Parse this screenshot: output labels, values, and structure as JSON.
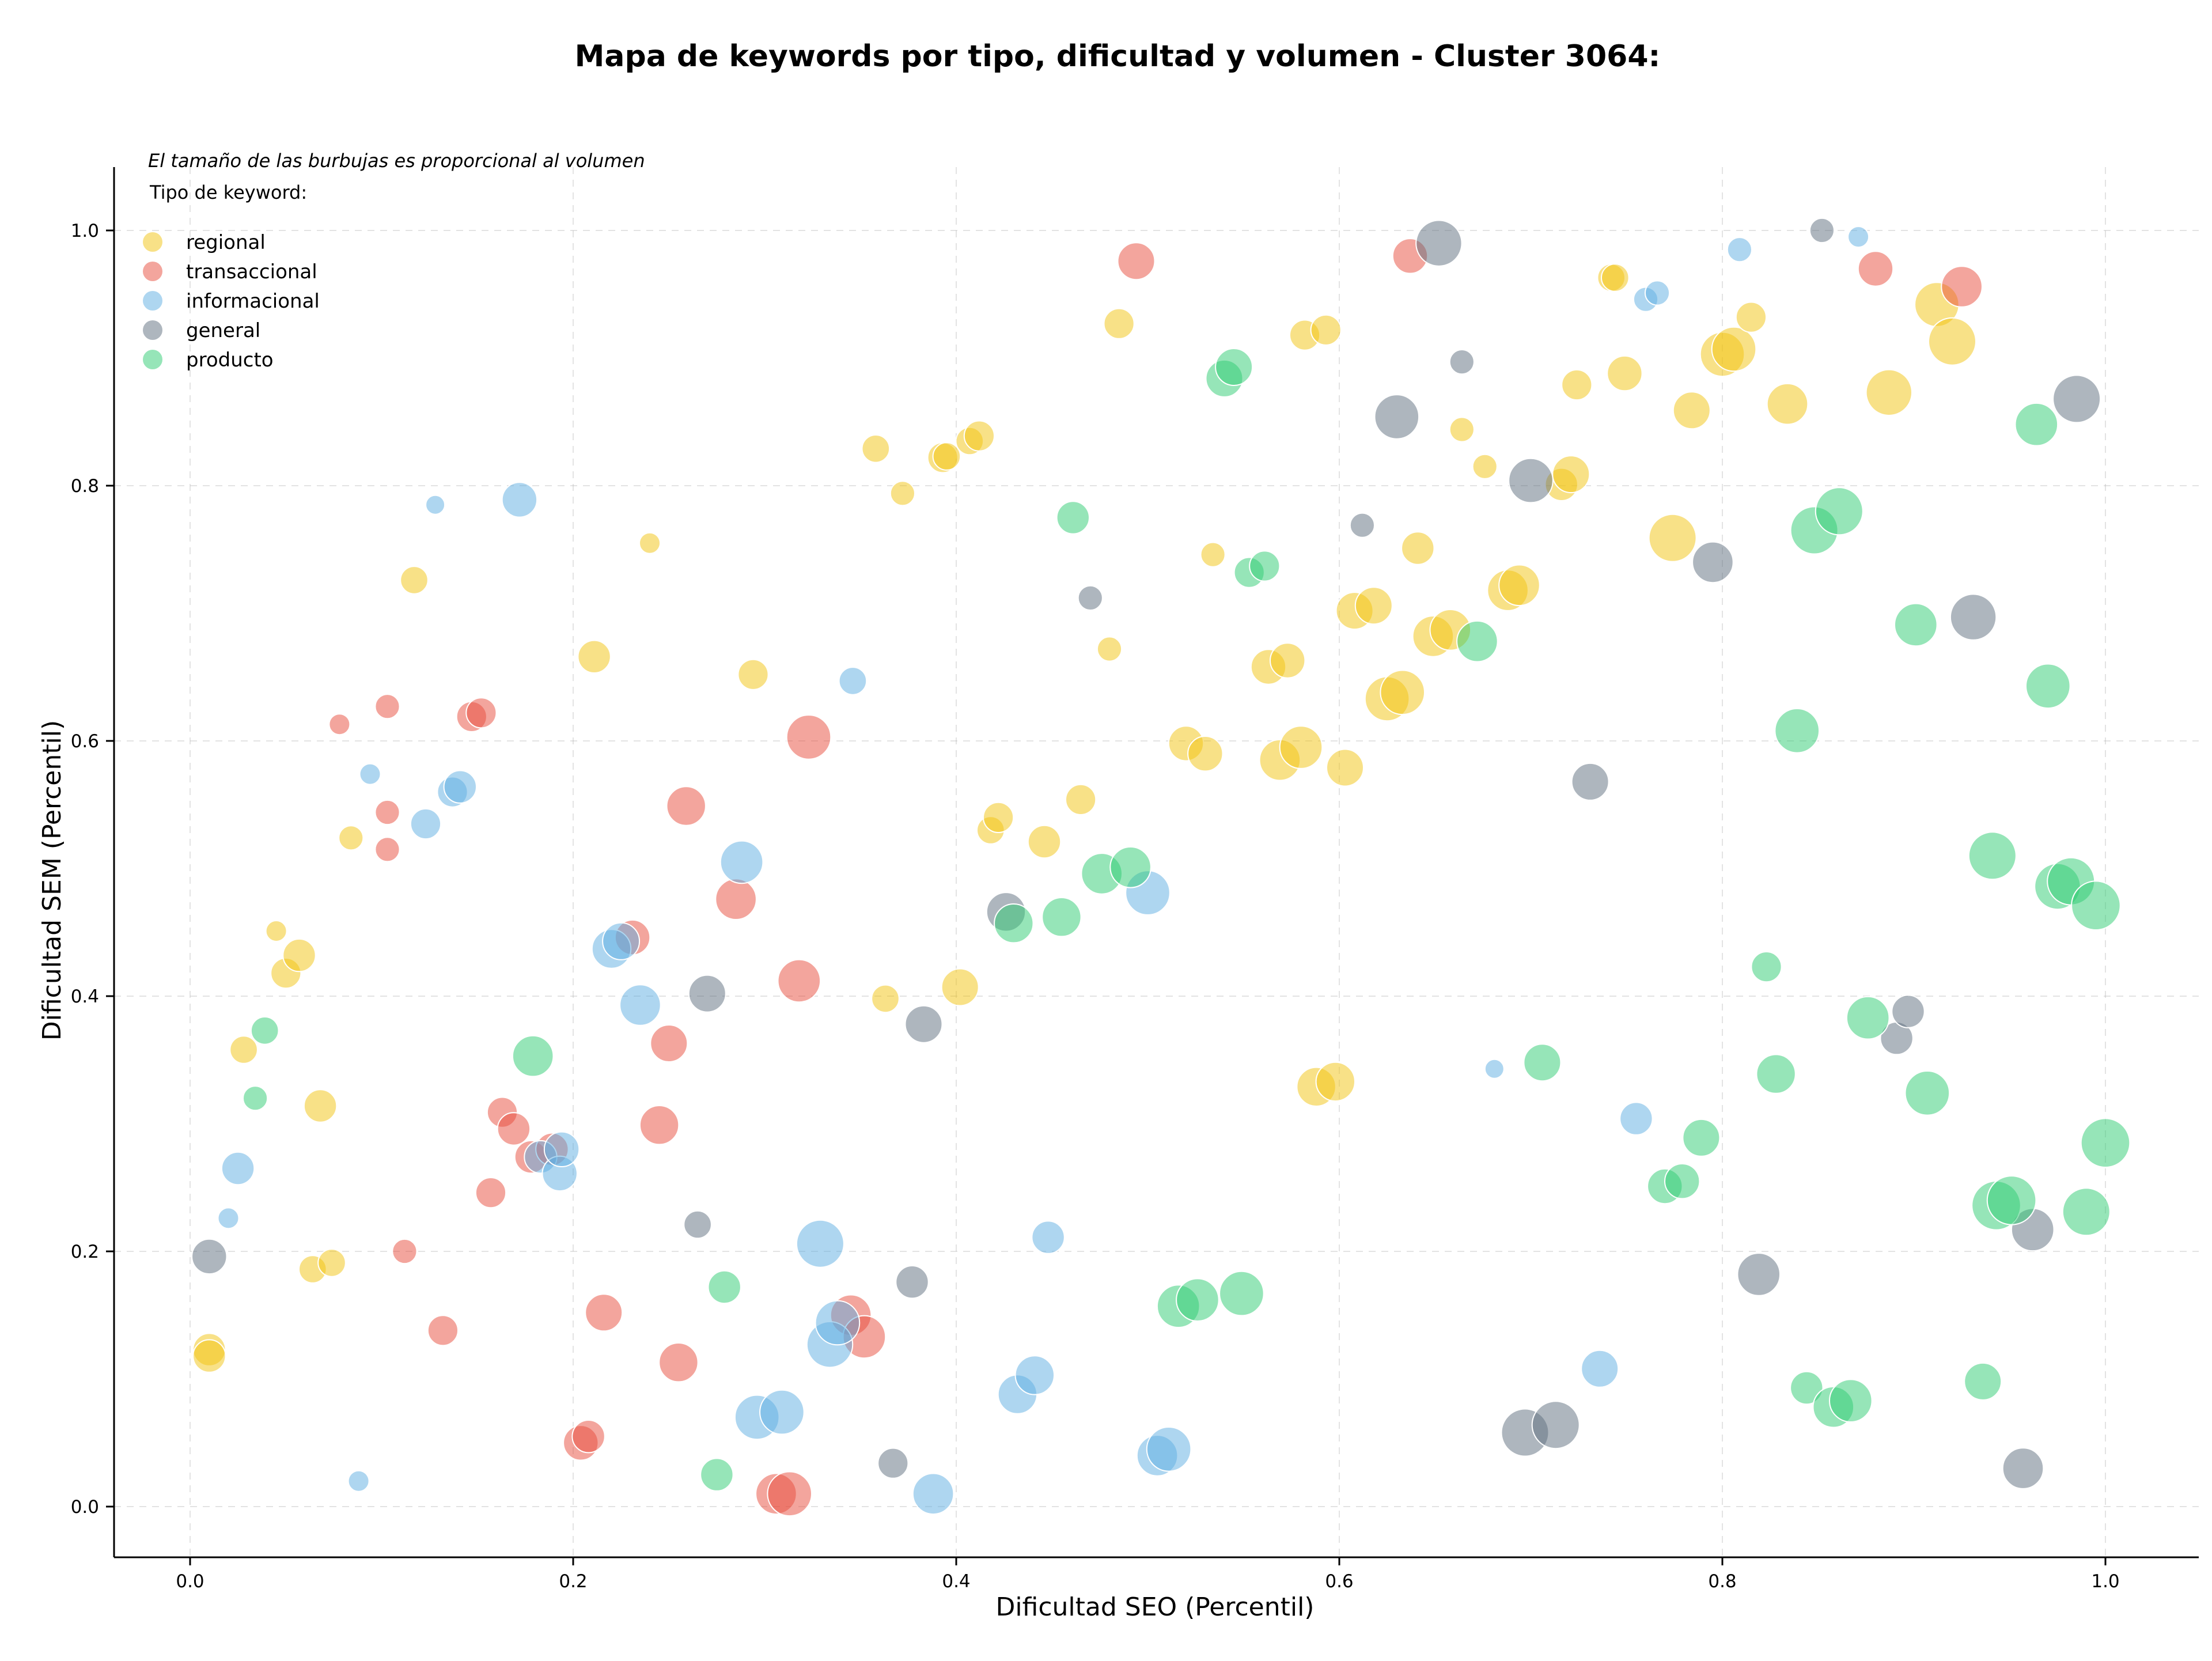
{
  "chart_data": {
    "type": "scatter",
    "title": "Mapa de keywords por tipo, dificultad y volumen - Cluster 3064:",
    "xlabel": "Dificultad SEO (Percentil)",
    "ylabel": "Dificultad SEM (Percentil)",
    "xlim": [
      -0.04,
      1.05
    ],
    "ylim": [
      -0.04,
      1.05
    ],
    "xticks": [
      "0.0",
      "0.2",
      "0.4",
      "0.6",
      "0.8",
      "1.0"
    ],
    "yticks": [
      "0.0",
      "0.2",
      "0.4",
      "0.6",
      "0.8",
      "1.0"
    ],
    "grid": true,
    "note": "El tamaño de las burbujas es proporcional al volumen",
    "legend_title": "Tipo de keyword:",
    "legend_position": "top-left",
    "series": [
      {
        "name": "regional",
        "color": "#f1c40f",
        "points": [
          [
            0.01,
            0.123,
            3
          ],
          [
            0.01,
            0.118,
            3
          ],
          [
            0.028,
            0.358,
            2
          ],
          [
            0.045,
            0.451,
            1
          ],
          [
            0.05,
            0.418,
            2.5
          ],
          [
            0.057,
            0.432,
            3
          ],
          [
            0.068,
            0.314,
            3
          ],
          [
            0.064,
            0.186,
            2
          ],
          [
            0.074,
            0.191,
            2
          ],
          [
            0.084,
            0.524,
            1.5
          ],
          [
            0.117,
            0.726,
            2
          ],
          [
            0.211,
            0.666,
            3
          ],
          [
            0.24,
            0.755,
            1
          ],
          [
            0.294,
            0.652,
            2.5
          ],
          [
            0.358,
            0.829,
            2
          ],
          [
            0.372,
            0.794,
            1.5
          ],
          [
            0.393,
            0.822,
            2.5
          ],
          [
            0.395,
            0.823,
            2
          ],
          [
            0.407,
            0.835,
            2
          ],
          [
            0.412,
            0.839,
            2.5
          ],
          [
            0.485,
            0.927,
            2.5
          ],
          [
            0.48,
            0.672,
            1.5
          ],
          [
            0.418,
            0.53,
            2
          ],
          [
            0.422,
            0.54,
            2.5
          ],
          [
            0.446,
            0.521,
            3
          ],
          [
            0.465,
            0.554,
            2.5
          ],
          [
            0.363,
            0.398,
            2
          ],
          [
            0.402,
            0.407,
            4
          ],
          [
            0.52,
            0.598,
            3.5
          ],
          [
            0.53,
            0.59,
            3.5
          ],
          [
            0.534,
            0.746,
            1.5
          ],
          [
            0.563,
            0.658,
            3.5
          ],
          [
            0.573,
            0.663,
            3.5
          ],
          [
            0.569,
            0.585,
            5
          ],
          [
            0.58,
            0.595,
            5.5
          ],
          [
            0.603,
            0.579,
            4
          ],
          [
            0.582,
            0.918,
            2.5
          ],
          [
            0.593,
            0.922,
            2.5
          ],
          [
            0.608,
            0.702,
            4
          ],
          [
            0.618,
            0.706,
            4
          ],
          [
            0.625,
            0.633,
            6
          ],
          [
            0.633,
            0.638,
            6
          ],
          [
            0.641,
            0.751,
            3
          ],
          [
            0.649,
            0.682,
            5
          ],
          [
            0.658,
            0.687,
            5
          ],
          [
            0.664,
            0.844,
            1.5
          ],
          [
            0.676,
            0.815,
            1.5
          ],
          [
            0.688,
            0.718,
            5
          ],
          [
            0.694,
            0.722,
            5
          ],
          [
            0.716,
            0.801,
            3
          ],
          [
            0.721,
            0.809,
            4
          ],
          [
            0.724,
            0.879,
            2.5
          ],
          [
            0.742,
            0.963,
            2
          ],
          [
            0.744,
            0.963,
            2
          ],
          [
            0.749,
            0.888,
            3.5
          ],
          [
            0.774,
            0.759,
            7
          ],
          [
            0.784,
            0.859,
            4
          ],
          [
            0.8,
            0.903,
            6
          ],
          [
            0.806,
            0.907,
            6
          ],
          [
            0.815,
            0.932,
            2.5
          ],
          [
            0.834,
            0.864,
            5
          ],
          [
            0.887,
            0.873,
            6.5
          ],
          [
            0.912,
            0.942,
            6
          ],
          [
            0.92,
            0.913,
            7
          ],
          [
            0.588,
            0.329,
            4.5
          ],
          [
            0.598,
            0.333,
            4.5
          ]
        ]
      },
      {
        "name": "transaccional",
        "color": "#e74c3c",
        "points": [
          [
            0.078,
            0.613,
            1
          ],
          [
            0.103,
            0.627,
            1.5
          ],
          [
            0.103,
            0.544,
            1.5
          ],
          [
            0.103,
            0.515,
            1.5
          ],
          [
            0.147,
            0.619,
            2.5
          ],
          [
            0.152,
            0.622,
            2.5
          ],
          [
            0.112,
            0.2,
            1.5
          ],
          [
            0.132,
            0.138,
            2.5
          ],
          [
            0.157,
            0.246,
            2.5
          ],
          [
            0.163,
            0.309,
            2.5
          ],
          [
            0.169,
            0.296,
            3
          ],
          [
            0.178,
            0.274,
            3
          ],
          [
            0.189,
            0.28,
            3
          ],
          [
            0.216,
            0.152,
            4
          ],
          [
            0.204,
            0.05,
            3.5
          ],
          [
            0.208,
            0.055,
            3
          ],
          [
            0.231,
            0.446,
            3.5
          ],
          [
            0.25,
            0.363,
            4
          ],
          [
            0.245,
            0.299,
            4.5
          ],
          [
            0.259,
            0.549,
            4.5
          ],
          [
            0.255,
            0.113,
            4.5
          ],
          [
            0.285,
            0.476,
            5
          ],
          [
            0.318,
            0.412,
            5.5
          ],
          [
            0.323,
            0.603,
            6
          ],
          [
            0.306,
            0.01,
            5
          ],
          [
            0.313,
            0.01,
            6
          ],
          [
            0.345,
            0.15,
            5
          ],
          [
            0.352,
            0.133,
            5.5
          ],
          [
            0.494,
            0.976,
            4
          ],
          [
            0.637,
            0.98,
            3.5
          ],
          [
            0.88,
            0.97,
            3.5
          ],
          [
            0.925,
            0.956,
            5
          ]
        ]
      },
      {
        "name": "informacional",
        "color": "#5dade2",
        "points": [
          [
            0.02,
            0.226,
            1
          ],
          [
            0.025,
            0.265,
            3
          ],
          [
            0.088,
            0.02,
            1
          ],
          [
            0.094,
            0.574,
            1
          ],
          [
            0.123,
            0.535,
            2.5
          ],
          [
            0.128,
            0.785,
            0.8
          ],
          [
            0.137,
            0.56,
            2.5
          ],
          [
            0.141,
            0.564,
            3
          ],
          [
            0.172,
            0.789,
            3.5
          ],
          [
            0.183,
            0.274,
            3
          ],
          [
            0.193,
            0.261,
            3.5
          ],
          [
            0.194,
            0.28,
            3.5
          ],
          [
            0.22,
            0.437,
            4.5
          ],
          [
            0.225,
            0.443,
            4
          ],
          [
            0.235,
            0.393,
            5
          ],
          [
            0.288,
            0.505,
            5.5
          ],
          [
            0.296,
            0.07,
            6
          ],
          [
            0.309,
            0.074,
            6
          ],
          [
            0.329,
            0.206,
            7
          ],
          [
            0.334,
            0.127,
            6.5
          ],
          [
            0.338,
            0.144,
            6
          ],
          [
            0.346,
            0.647,
            2
          ],
          [
            0.388,
            0.01,
            5
          ],
          [
            0.432,
            0.088,
            4.5
          ],
          [
            0.441,
            0.103,
            4.5
          ],
          [
            0.448,
            0.211,
            3
          ],
          [
            0.5,
            0.481,
            6
          ],
          [
            0.505,
            0.04,
            5
          ],
          [
            0.511,
            0.045,
            6
          ],
          [
            0.681,
            0.343,
            0.8
          ],
          [
            0.736,
            0.108,
            4
          ],
          [
            0.755,
            0.304,
            3
          ],
          [
            0.76,
            0.946,
            1.5
          ],
          [
            0.766,
            0.951,
            1.5
          ],
          [
            0.809,
            0.985,
            1.5
          ],
          [
            0.871,
            0.995,
            1
          ]
        ]
      },
      {
        "name": "general",
        "color": "#5d6d7e",
        "points": [
          [
            0.01,
            0.196,
            3.5
          ],
          [
            0.265,
            0.221,
            2
          ],
          [
            0.27,
            0.402,
            4
          ],
          [
            0.367,
            0.034,
            2.5
          ],
          [
            0.377,
            0.176,
            3
          ],
          [
            0.383,
            0.378,
            4
          ],
          [
            0.426,
            0.466,
            4.5
          ],
          [
            0.47,
            0.712,
            1.5
          ],
          [
            0.612,
            0.769,
            1.5
          ],
          [
            0.63,
            0.854,
            6
          ],
          [
            0.652,
            0.99,
            6.5
          ],
          [
            0.664,
            0.897,
            1.5
          ],
          [
            0.7,
            0.804,
            6
          ],
          [
            0.697,
            0.058,
            7
          ],
          [
            0.713,
            0.064,
            7
          ],
          [
            0.731,
            0.568,
            4
          ],
          [
            0.795,
            0.74,
            5
          ],
          [
            0.819,
            0.182,
            5.5
          ],
          [
            0.852,
            1.0,
            1.5
          ],
          [
            0.891,
            0.367,
            3
          ],
          [
            0.897,
            0.388,
            3
          ],
          [
            0.931,
            0.697,
            6.5
          ],
          [
            0.957,
            0.03,
            5
          ],
          [
            0.962,
            0.217,
            5.5
          ],
          [
            0.985,
            0.868,
            7
          ]
        ]
      },
      {
        "name": "producto",
        "color": "#2ecc71",
        "points": [
          [
            0.034,
            0.32,
            1.5
          ],
          [
            0.039,
            0.373,
            2
          ],
          [
            0.179,
            0.353,
            5
          ],
          [
            0.275,
            0.025,
            3
          ],
          [
            0.279,
            0.172,
            3
          ],
          [
            0.43,
            0.457,
            4.5
          ],
          [
            0.455,
            0.462,
            4.5
          ],
          [
            0.461,
            0.775,
            3
          ],
          [
            0.476,
            0.496,
            5
          ],
          [
            0.491,
            0.501,
            5
          ],
          [
            0.516,
            0.157,
            5.5
          ],
          [
            0.526,
            0.162,
            5.5
          ],
          [
            0.54,
            0.884,
            4
          ],
          [
            0.545,
            0.893,
            4
          ],
          [
            0.553,
            0.732,
            2.5
          ],
          [
            0.561,
            0.737,
            2.5
          ],
          [
            0.549,
            0.167,
            6
          ],
          [
            0.672,
            0.678,
            5
          ],
          [
            0.706,
            0.348,
            4
          ],
          [
            0.77,
            0.251,
            3.5
          ],
          [
            0.779,
            0.255,
            3.5
          ],
          [
            0.789,
            0.289,
            4
          ],
          [
            0.823,
            0.423,
            2.5
          ],
          [
            0.828,
            0.339,
            4.5
          ],
          [
            0.839,
            0.608,
            6
          ],
          [
            0.844,
            0.093,
            3
          ],
          [
            0.848,
            0.765,
            7
          ],
          [
            0.861,
            0.78,
            7
          ],
          [
            0.858,
            0.078,
            5
          ],
          [
            0.867,
            0.083,
            5.5
          ],
          [
            0.876,
            0.383,
            5.5
          ],
          [
            0.901,
            0.691,
            5.5
          ],
          [
            0.907,
            0.324,
            6
          ],
          [
            0.936,
            0.098,
            4
          ],
          [
            0.941,
            0.51,
            7
          ],
          [
            0.943,
            0.236,
            7.5
          ],
          [
            0.951,
            0.24,
            7.5
          ],
          [
            0.964,
            0.848,
            5.5
          ],
          [
            0.97,
            0.643,
            6
          ],
          [
            0.975,
            0.486,
            6.5
          ],
          [
            0.982,
            0.49,
            7
          ],
          [
            0.99,
            0.231,
            7
          ],
          [
            0.995,
            0.471,
            7.5
          ],
          [
            1.0,
            0.285,
            7.5
          ]
        ]
      }
    ]
  }
}
